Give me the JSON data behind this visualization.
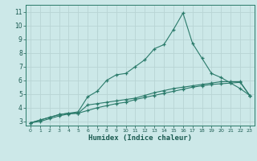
{
  "xlabel": "Humidex (Indice chaleur)",
  "x": [
    0,
    1,
    2,
    3,
    4,
    5,
    6,
    7,
    8,
    9,
    10,
    11,
    12,
    13,
    14,
    15,
    16,
    17,
    18,
    19,
    20,
    21,
    22,
    23
  ],
  "line1": [
    2.9,
    3.1,
    3.3,
    3.5,
    3.6,
    3.6,
    4.2,
    4.3,
    4.4,
    4.5,
    4.6,
    4.7,
    4.9,
    5.1,
    5.25,
    5.4,
    5.5,
    5.6,
    5.7,
    5.8,
    5.9,
    5.9,
    5.9,
    4.9
  ],
  "line2": [
    2.9,
    3.1,
    3.3,
    3.5,
    3.6,
    3.7,
    4.8,
    5.2,
    6.0,
    6.4,
    6.5,
    7.0,
    7.5,
    8.3,
    8.6,
    9.7,
    10.9,
    8.7,
    7.6,
    6.5,
    6.2,
    5.8,
    5.4,
    4.9
  ],
  "line3": [
    2.9,
    3.0,
    3.2,
    3.4,
    3.55,
    3.6,
    3.8,
    4.0,
    4.15,
    4.3,
    4.4,
    4.6,
    4.75,
    4.9,
    5.05,
    5.2,
    5.35,
    5.5,
    5.6,
    5.7,
    5.75,
    5.8,
    5.85,
    4.9
  ],
  "line_color": "#2a7a6a",
  "bg_color": "#cce8e8",
  "grid_color": "#b8d4d4",
  "xlim": [
    -0.5,
    23.5
  ],
  "ylim": [
    2.7,
    11.5
  ],
  "xticks": [
    0,
    1,
    2,
    3,
    4,
    5,
    6,
    7,
    8,
    9,
    10,
    11,
    12,
    13,
    14,
    15,
    16,
    17,
    18,
    19,
    20,
    21,
    22,
    23
  ],
  "yticks": [
    3,
    4,
    5,
    6,
    7,
    8,
    9,
    10,
    11
  ]
}
